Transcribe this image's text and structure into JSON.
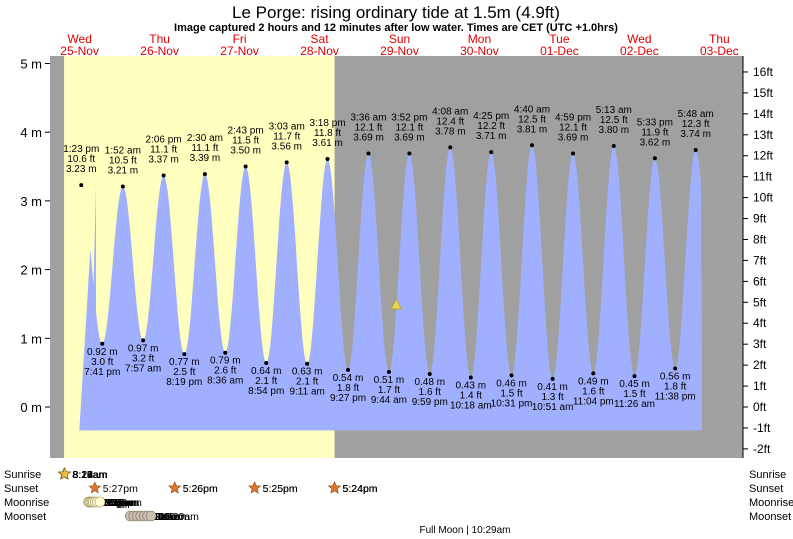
{
  "header": {
    "title": "Le Porge: rising  ordinary tide at 1.5m (4.9ft)",
    "subtitle": "Image captured 2 hours and 12 minutes after low water. Times are CET (UTC +1.0hrs)"
  },
  "days": [
    {
      "dow": "Wed",
      "date": "25-Nov"
    },
    {
      "dow": "Thu",
      "date": "26-Nov"
    },
    {
      "dow": "Fri",
      "date": "27-Nov"
    },
    {
      "dow": "Sat",
      "date": "28-Nov"
    },
    {
      "dow": "Sun",
      "date": "29-Nov"
    },
    {
      "dow": "Mon",
      "date": "30-Nov"
    },
    {
      "dow": "Tue",
      "date": "01-Dec"
    },
    {
      "dow": "Wed",
      "date": "02-Dec"
    },
    {
      "dow": "Thu",
      "date": "03-Dec"
    }
  ],
  "row_labels": {
    "sunrise": "Sunrise",
    "sunset": "Sunset",
    "moonrise": "Moonrise",
    "moonset": "Moonset"
  },
  "astro": {
    "sunrise": [
      "8:16am",
      "8:17am",
      "8:18am",
      "8:19am",
      "8:21am",
      "8:22am",
      "8:23am",
      "8:24am"
    ],
    "sunset": [
      "5:27pm",
      "5:26pm",
      "5:26pm",
      "5:25pm",
      "5:25pm",
      "5:24pm",
      "5:24pm",
      "5:24pm"
    ],
    "moonrise": [
      "3:35pm",
      "3:54pm",
      "4:15pm",
      "4:37pm",
      "5:03pm",
      "5:34pm",
      "6:12pm",
      "6:59pm"
    ],
    "moonset": [
      "4:06am",
      "5:08am",
      "6:10am",
      "7:14am",
      "8:17am",
      "9:20am",
      "10:20am"
    ],
    "moon_phase": "Full Moon | 10:29am"
  },
  "colors": {
    "day": "#ffffc0",
    "night": "#a0a0a0",
    "tide": "#a0b0ff",
    "marker": "#e8d84a",
    "sun": "#f0c040",
    "sunset": "#e87030",
    "moonrise": "#ffffd0",
    "moonset": "#c8c0b0"
  },
  "chart_data": {
    "type": "area",
    "ylabel_left": "m",
    "ylabel_right": "ft",
    "ylim": [
      -0.6,
      5.25
    ],
    "yticks_m": [
      0,
      1,
      2,
      3,
      4,
      5
    ],
    "yticks_ft": [
      -2,
      -1,
      0,
      1,
      2,
      3,
      4,
      5,
      6,
      7,
      8,
      9,
      10,
      11,
      12,
      13,
      14,
      15,
      16
    ],
    "x_unit": "hours since 25-Nov 00:00",
    "highs": [
      {
        "time": "1:23 pm",
        "ft": "10.6 ft",
        "m": 3.23
      },
      {
        "time": "1:52 am",
        "ft": "10.5 ft",
        "m": 3.21
      },
      {
        "time": "2:06 pm",
        "ft": "11.1 ft",
        "m": 3.37
      },
      {
        "time": "2:30 am",
        "ft": "11.1 ft",
        "m": 3.39
      },
      {
        "time": "2:43 pm",
        "ft": "11.5 ft",
        "m": 3.5
      },
      {
        "time": "3:03 am",
        "ft": "11.7 ft",
        "m": 3.56
      },
      {
        "time": "3:18 pm",
        "ft": "11.8 ft",
        "m": 3.61
      },
      {
        "time": "3:36 am",
        "ft": "12.1 ft",
        "m": 3.69
      },
      {
        "time": "3:52 pm",
        "ft": "12.1 ft",
        "m": 3.69
      },
      {
        "time": "4:08 am",
        "ft": "12.4 ft",
        "m": 3.78
      },
      {
        "time": "4:25 pm",
        "ft": "12.2 ft",
        "m": 3.71
      },
      {
        "time": "4:40 am",
        "ft": "12.5 ft",
        "m": 3.81
      },
      {
        "time": "4:59 pm",
        "ft": "12.1 ft",
        "m": 3.69
      },
      {
        "time": "5:13 am",
        "ft": "12.5 ft",
        "m": 3.8
      },
      {
        "time": "5:33 pm",
        "ft": "11.9 ft",
        "m": 3.62
      },
      {
        "time": "5:48 am",
        "ft": "12.3 ft",
        "m": 3.74
      }
    ],
    "lows": [
      {
        "time": "7:41 pm",
        "ft": "3.0 ft",
        "m": 0.92
      },
      {
        "time": "7:57 am",
        "ft": "3.2 ft",
        "m": 0.97
      },
      {
        "time": "8:19 pm",
        "ft": "2.5 ft",
        "m": 0.77
      },
      {
        "time": "8:36 am",
        "ft": "2.6 ft",
        "m": 0.79
      },
      {
        "time": "8:54 pm",
        "ft": "2.1 ft",
        "m": 0.64
      },
      {
        "time": "9:11 am",
        "ft": "2.1 ft",
        "m": 0.63
      },
      {
        "time": "9:27 pm",
        "ft": "1.8 ft",
        "m": 0.54
      },
      {
        "time": "9:44 am",
        "ft": "1.7 ft",
        "m": 0.51
      },
      {
        "time": "9:59 pm",
        "ft": "1.6 ft",
        "m": 0.48
      },
      {
        "time": "10:18 am",
        "ft": "1.4 ft",
        "m": 0.43
      },
      {
        "time": "10:31 pm",
        "ft": "1.5 ft",
        "m": 0.46
      },
      {
        "time": "10:51 am",
        "ft": "1.3 ft",
        "m": 0.41
      },
      {
        "time": "11:04 pm",
        "ft": "1.6 ft",
        "m": 0.49
      },
      {
        "time": "11:26 am",
        "ft": "1.5 ft",
        "m": 0.45
      },
      {
        "time": "11:38 pm",
        "ft": "1.8 ft",
        "m": 0.56
      }
    ],
    "current": {
      "m": 1.5
    }
  }
}
